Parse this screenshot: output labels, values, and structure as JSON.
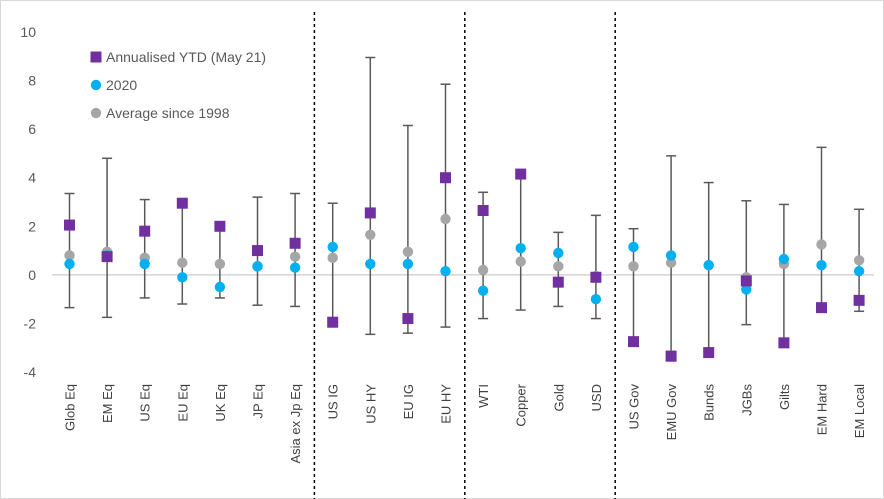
{
  "chart_data": {
    "type": "scatter",
    "subtype": "range-dot-plot",
    "title": "",
    "xlabel": "",
    "ylabel": "",
    "ylim": [
      -4,
      10
    ],
    "yticks": [
      -4,
      -2,
      0,
      2,
      4,
      6,
      8,
      10
    ],
    "grid": false,
    "legend_position": "top-left",
    "categories": [
      "Glob Eq",
      "EM Eq",
      "US Eq",
      "EU Eq",
      "UK Eq",
      "JP Eq",
      "Asia ex Jp Eq",
      "US IG",
      "US HY",
      "EU IG",
      "EU HY",
      "WTI",
      "Copper",
      "Gold",
      "USD",
      "US Gov",
      "EMU Gov",
      "Bunds",
      "JGBs",
      "Gilts",
      "EM Hard",
      "EM Local"
    ],
    "group_separators_after": [
      "Asia ex Jp Eq",
      "EU HY",
      "USD"
    ],
    "range": {
      "low": [
        -1.35,
        -1.75,
        -0.95,
        -1.2,
        -0.95,
        -1.25,
        -1.3,
        -1.95,
        -2.45,
        -2.4,
        -2.15,
        -1.8,
        -1.45,
        -1.3,
        -1.8,
        -2.65,
        -3.15,
        -3.15,
        -2.05,
        -2.75,
        -1.25,
        -1.5
      ],
      "high": [
        3.35,
        4.8,
        3.1,
        2.95,
        2.0,
        3.2,
        3.35,
        2.95,
        8.95,
        6.15,
        7.85,
        3.4,
        4.1,
        1.75,
        2.45,
        1.9,
        4.9,
        3.8,
        3.05,
        2.9,
        5.25,
        2.7
      ]
    },
    "series": [
      {
        "name": "Annualised YTD (May 21)",
        "marker": "square",
        "color": "#7030a0",
        "values": [
          2.05,
          0.75,
          1.8,
          2.95,
          2.0,
          1.0,
          1.3,
          -1.95,
          2.55,
          -1.8,
          4.0,
          2.65,
          4.15,
          -0.3,
          -0.1,
          -2.75,
          -3.35,
          -3.2,
          -0.25,
          -2.8,
          -1.35,
          -1.05
        ]
      },
      {
        "name": "2020",
        "marker": "circle",
        "color": "#00b0f0",
        "values": [
          0.45,
          0.8,
          0.45,
          -0.1,
          -0.5,
          0.35,
          0.3,
          1.15,
          0.45,
          0.45,
          0.15,
          -0.65,
          1.1,
          0.9,
          -1.0,
          1.15,
          0.8,
          0.4,
          -0.6,
          0.65,
          0.4,
          0.15
        ]
      },
      {
        "name": "Average since 1998",
        "marker": "circle",
        "color": "#a6a6a6",
        "values": [
          0.8,
          0.95,
          0.7,
          0.5,
          0.45,
          0.35,
          0.75,
          0.7,
          1.65,
          0.95,
          2.3,
          0.2,
          0.55,
          0.35,
          -0.05,
          0.35,
          0.5,
          0.4,
          -0.1,
          0.45,
          1.25,
          0.6
        ]
      }
    ],
    "colors": {
      "range_line": "#595959",
      "separator": "#000000",
      "axis": "#bfbfbf"
    }
  }
}
